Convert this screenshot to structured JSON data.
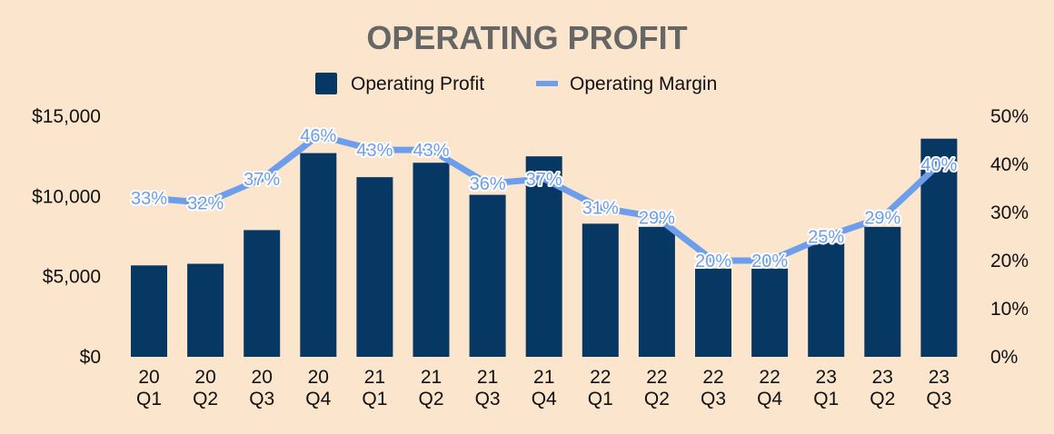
{
  "chart_data": {
    "type": "bar+line",
    "title": "OPERATING PROFIT",
    "categories": [
      [
        "20",
        "Q1"
      ],
      [
        "20",
        "Q2"
      ],
      [
        "20",
        "Q3"
      ],
      [
        "20",
        "Q4"
      ],
      [
        "21",
        "Q1"
      ],
      [
        "21",
        "Q2"
      ],
      [
        "21",
        "Q3"
      ],
      [
        "21",
        "Q4"
      ],
      [
        "22",
        "Q1"
      ],
      [
        "22",
        "Q2"
      ],
      [
        "22",
        "Q3"
      ],
      [
        "22",
        "Q4"
      ],
      [
        "23",
        "Q1"
      ],
      [
        "23",
        "Q2"
      ],
      [
        "23",
        "Q3"
      ]
    ],
    "series": [
      {
        "name": "Operating Profit",
        "type": "bar",
        "axis": "left",
        "color": "#073763",
        "values": [
          5700,
          5800,
          7900,
          12700,
          11200,
          12100,
          10100,
          12500,
          8300,
          8100,
          5500,
          5500,
          7100,
          8100,
          13600
        ]
      },
      {
        "name": "Operating Margin",
        "type": "line",
        "axis": "right",
        "color": "#6d9eeb",
        "values": [
          33,
          32,
          37,
          46,
          43,
          43,
          36,
          37,
          31,
          29,
          20,
          20,
          25,
          29,
          40
        ],
        "labels": [
          "33%",
          "32%",
          "37%",
          "46%",
          "43%",
          "43%",
          "36%",
          "37%",
          "31%",
          "29%",
          "20%",
          "20%",
          "25%",
          "29%",
          "40%"
        ]
      }
    ],
    "y_left": {
      "min": 0,
      "max": 15000,
      "ticks": [
        0,
        5000,
        10000,
        15000
      ],
      "tick_labels": [
        "$0",
        "$5,000",
        "$10,000",
        "$15,000"
      ]
    },
    "y_right": {
      "min": 0,
      "max": 50,
      "ticks": [
        0,
        10,
        20,
        30,
        40,
        50
      ],
      "tick_labels": [
        "0%",
        "10%",
        "20%",
        "30%",
        "40%",
        "50%"
      ]
    },
    "legend": {
      "position": "top-center",
      "items": [
        "Operating Profit",
        "Operating Margin"
      ]
    },
    "grid": false
  }
}
